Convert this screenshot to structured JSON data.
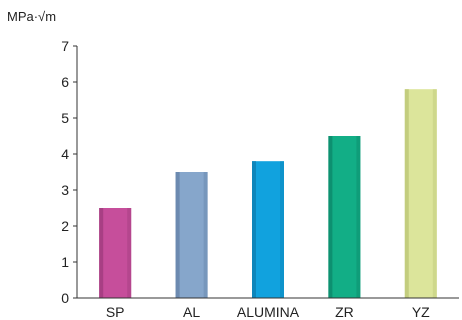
{
  "chart_data": {
    "type": "bar",
    "ylabel": "MPa·√m",
    "categories": [
      "SP",
      "AL",
      "ALUMINA",
      "ZR",
      "YZ"
    ],
    "values": [
      2.5,
      3.5,
      3.8,
      4.5,
      5.8
    ],
    "ylim": [
      0,
      7
    ],
    "yticks": [
      0,
      1,
      2,
      3,
      4,
      5,
      6,
      7
    ],
    "grid": false,
    "legend": "none",
    "colors": [
      "#c64e9b",
      "#86a6cb",
      "#11a2de",
      "#12ae86",
      "#dce59b"
    ],
    "shade_colors": [
      "#a83f84",
      "#6c8ab0",
      "#0d86bb",
      "#0d9070",
      "#c3cd7e"
    ],
    "axis_color": "#333333",
    "text_color": "#222222"
  }
}
